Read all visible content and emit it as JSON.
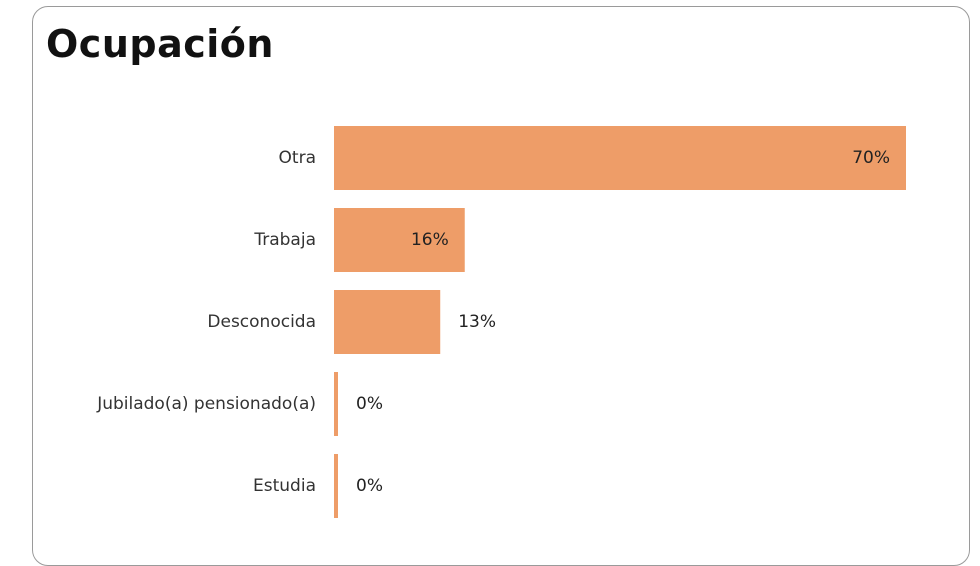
{
  "title": "Ocupación",
  "colors": {
    "bar": "#ee9d68"
  },
  "chart_data": {
    "type": "bar",
    "orientation": "horizontal",
    "title": "Ocupación",
    "categories": [
      "Otra",
      "Trabaja",
      "Desconocida",
      "Jubilado(a) pensionado(a)",
      "Estudia"
    ],
    "values": [
      70,
      16,
      13,
      0,
      0
    ],
    "value_labels": [
      "70%",
      "16%",
      "13%",
      "0%",
      "0%"
    ],
    "unit": "%",
    "xlim": [
      0,
      70
    ],
    "grid": false,
    "legend": "none"
  }
}
